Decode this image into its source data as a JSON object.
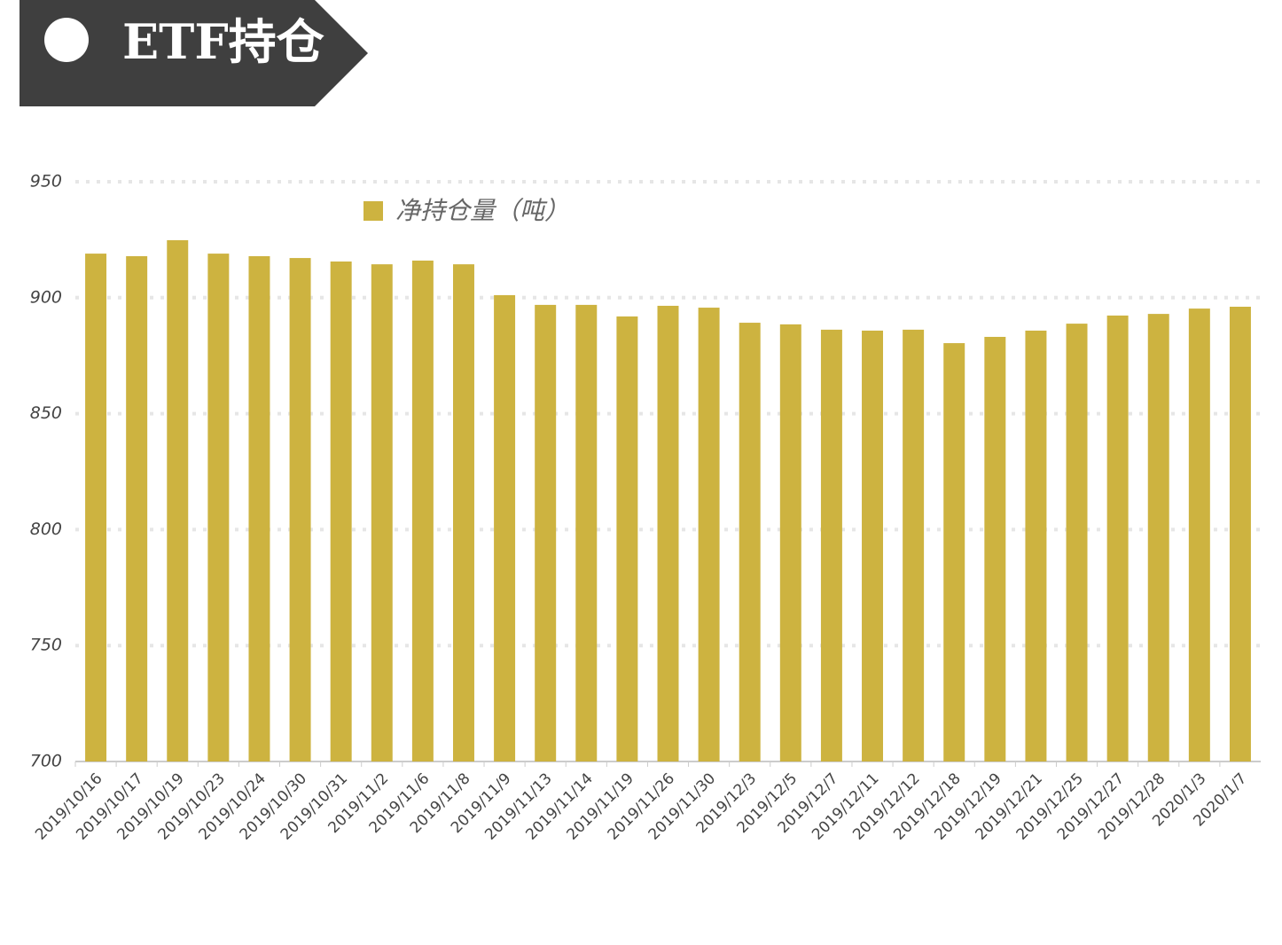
{
  "chart_data": {
    "type": "bar",
    "title": "ETF持仓",
    "legend": "净持仓量（吨）",
    "categories": [
      "2019/10/16",
      "2019/10/17",
      "2019/10/19",
      "2019/10/23",
      "2019/10/24",
      "2019/10/30",
      "2019/10/31",
      "2019/11/2",
      "2019/11/6",
      "2019/11/8",
      "2019/11/9",
      "2019/11/13",
      "2019/11/14",
      "2019/11/19",
      "2019/11/26",
      "2019/11/30",
      "2019/12/3",
      "2019/12/5",
      "2019/12/7",
      "2019/12/11",
      "2019/12/12",
      "2019/12/18",
      "2019/12/19",
      "2019/12/21",
      "2019/12/25",
      "2019/12/27",
      "2019/12/28",
      "2020/1/3",
      "2020/1/7"
    ],
    "values": [
      919,
      917.9,
      924.8,
      919,
      917.9,
      917.1,
      915.6,
      914.4,
      916,
      914.4,
      901.1,
      896.9,
      896.9,
      891.9,
      896.5,
      895.7,
      889.2,
      888.5,
      886.2,
      885.8,
      886.2,
      880.4,
      883.1,
      885.8,
      888.8,
      892.3,
      893,
      895.3,
      896.1
    ],
    "color": "#cdb340",
    "ylim": [
      700,
      950
    ],
    "yticks": [
      700,
      750,
      800,
      850,
      900,
      950
    ],
    "grid": true
  }
}
